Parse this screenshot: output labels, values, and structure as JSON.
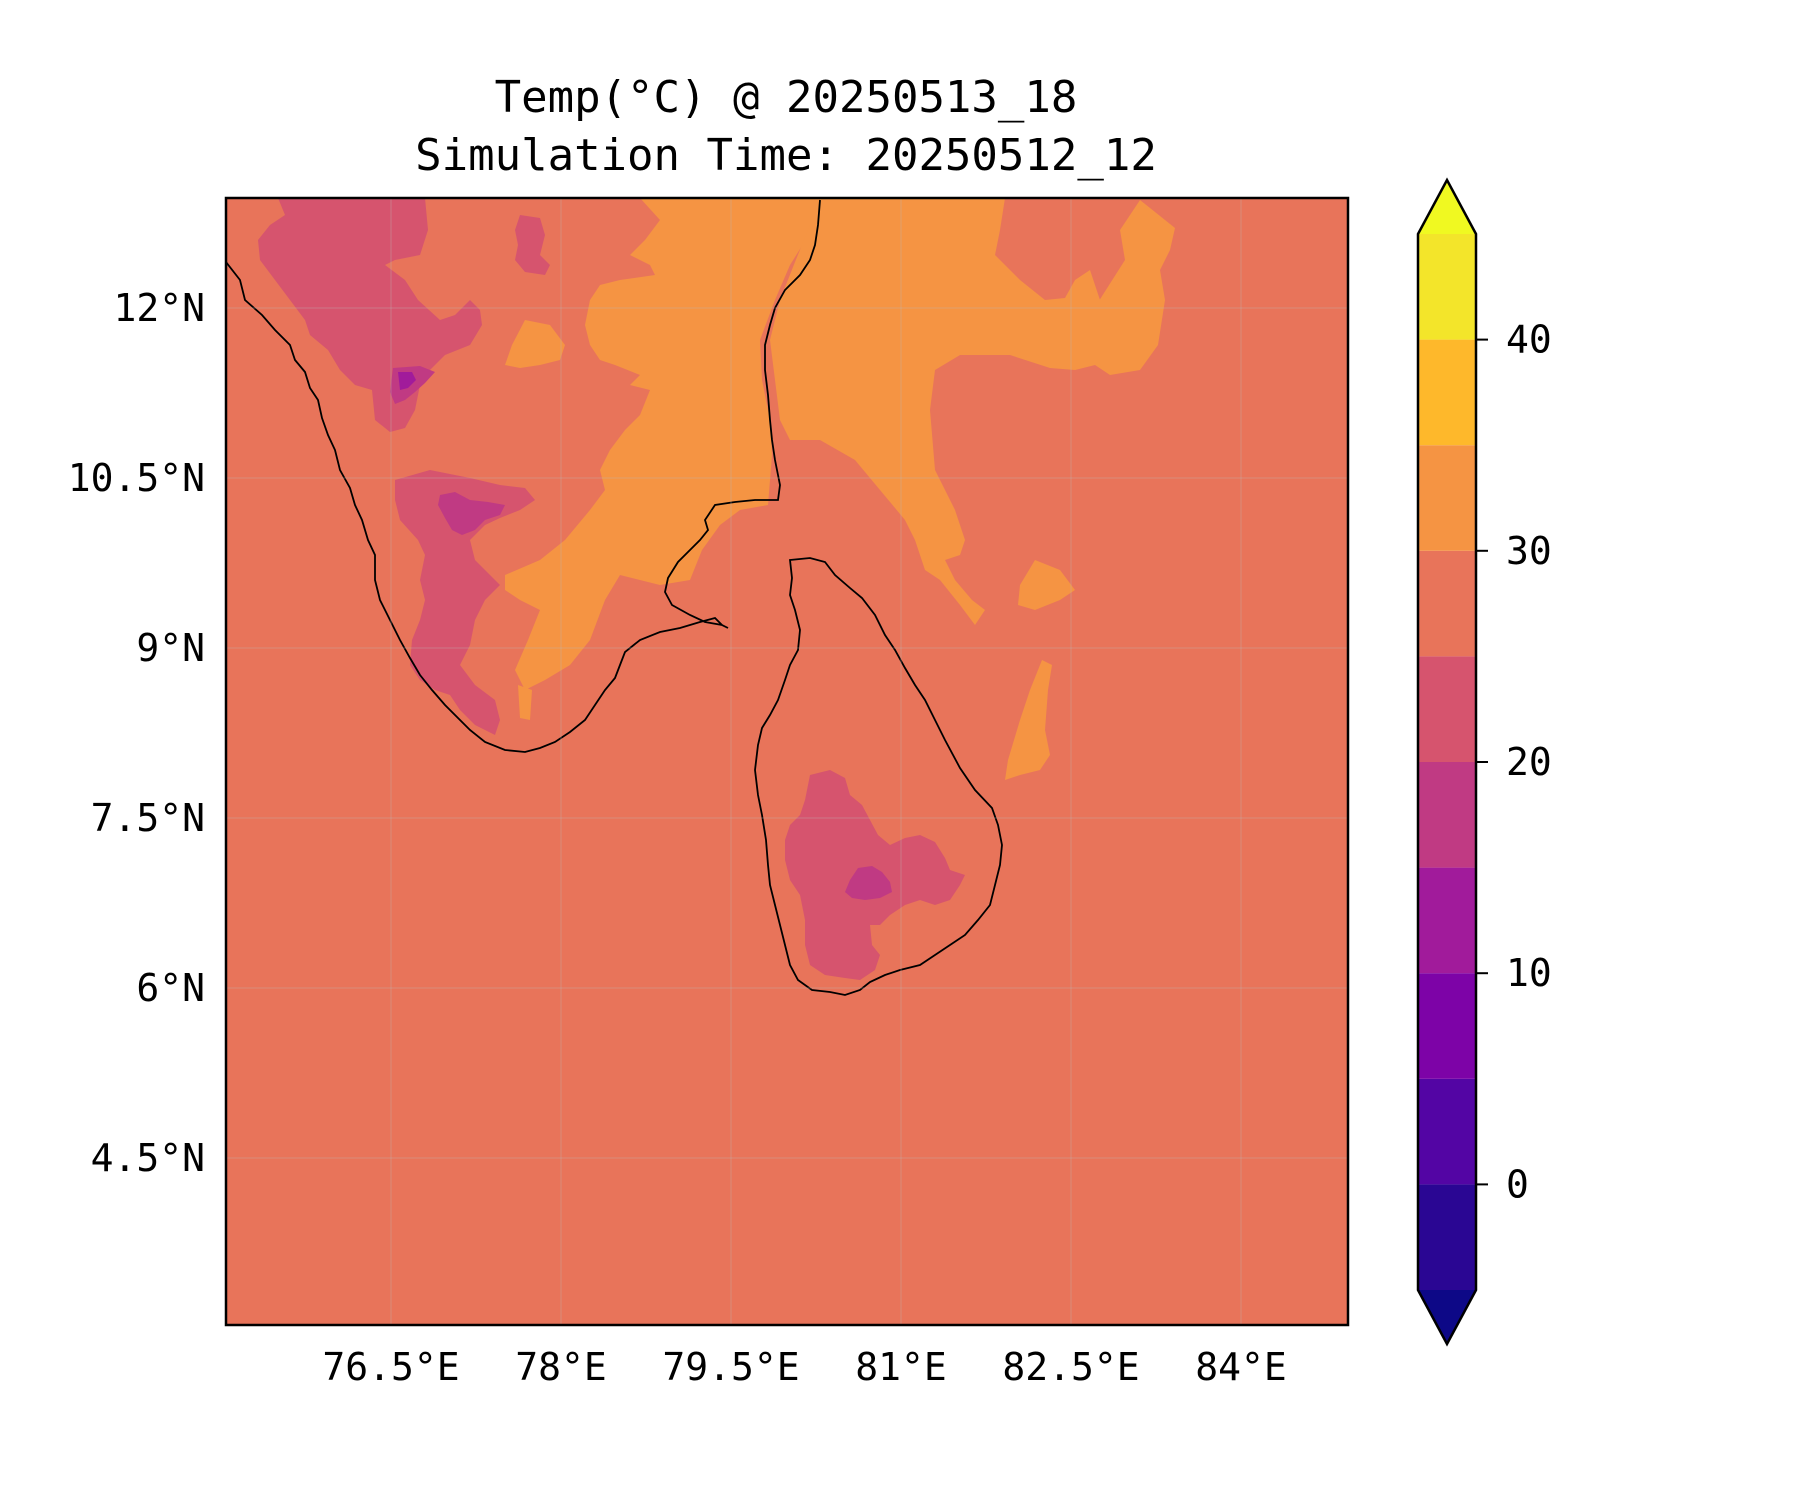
{
  "title": {
    "line1": "Temp(°C) @ 20250513_18",
    "line2": "Simulation Time: 20250512_12"
  },
  "map": {
    "background_color": "#e8745a",
    "x_ticks": [
      "76.5°E",
      "78°E",
      "79.5°E",
      "81°E",
      "82.5°E",
      "84°E"
    ],
    "y_ticks": [
      "12°N",
      "10.5°N",
      "9°N",
      "7.5°N",
      "6°N",
      "4.5°N"
    ],
    "grid": true,
    "coastline_color": "#000000"
  },
  "colorbar": {
    "levels": [
      -5,
      0,
      5,
      10,
      15,
      20,
      25,
      30,
      35,
      40,
      45
    ],
    "tick_labels": [
      "0",
      "10",
      "20",
      "30",
      "40"
    ],
    "tick_values": [
      0,
      10,
      20,
      30,
      40
    ],
    "band_colors": [
      "#2a0693",
      "#5305a4",
      "#7d03a7",
      "#a11b9b",
      "#c03a83",
      "#d6546e",
      "#e8745a",
      "#f59443",
      "#feb82b",
      "#f3e52a"
    ],
    "under_color": "#0d0887",
    "over_color": "#f0f921",
    "extend": "both"
  }
}
